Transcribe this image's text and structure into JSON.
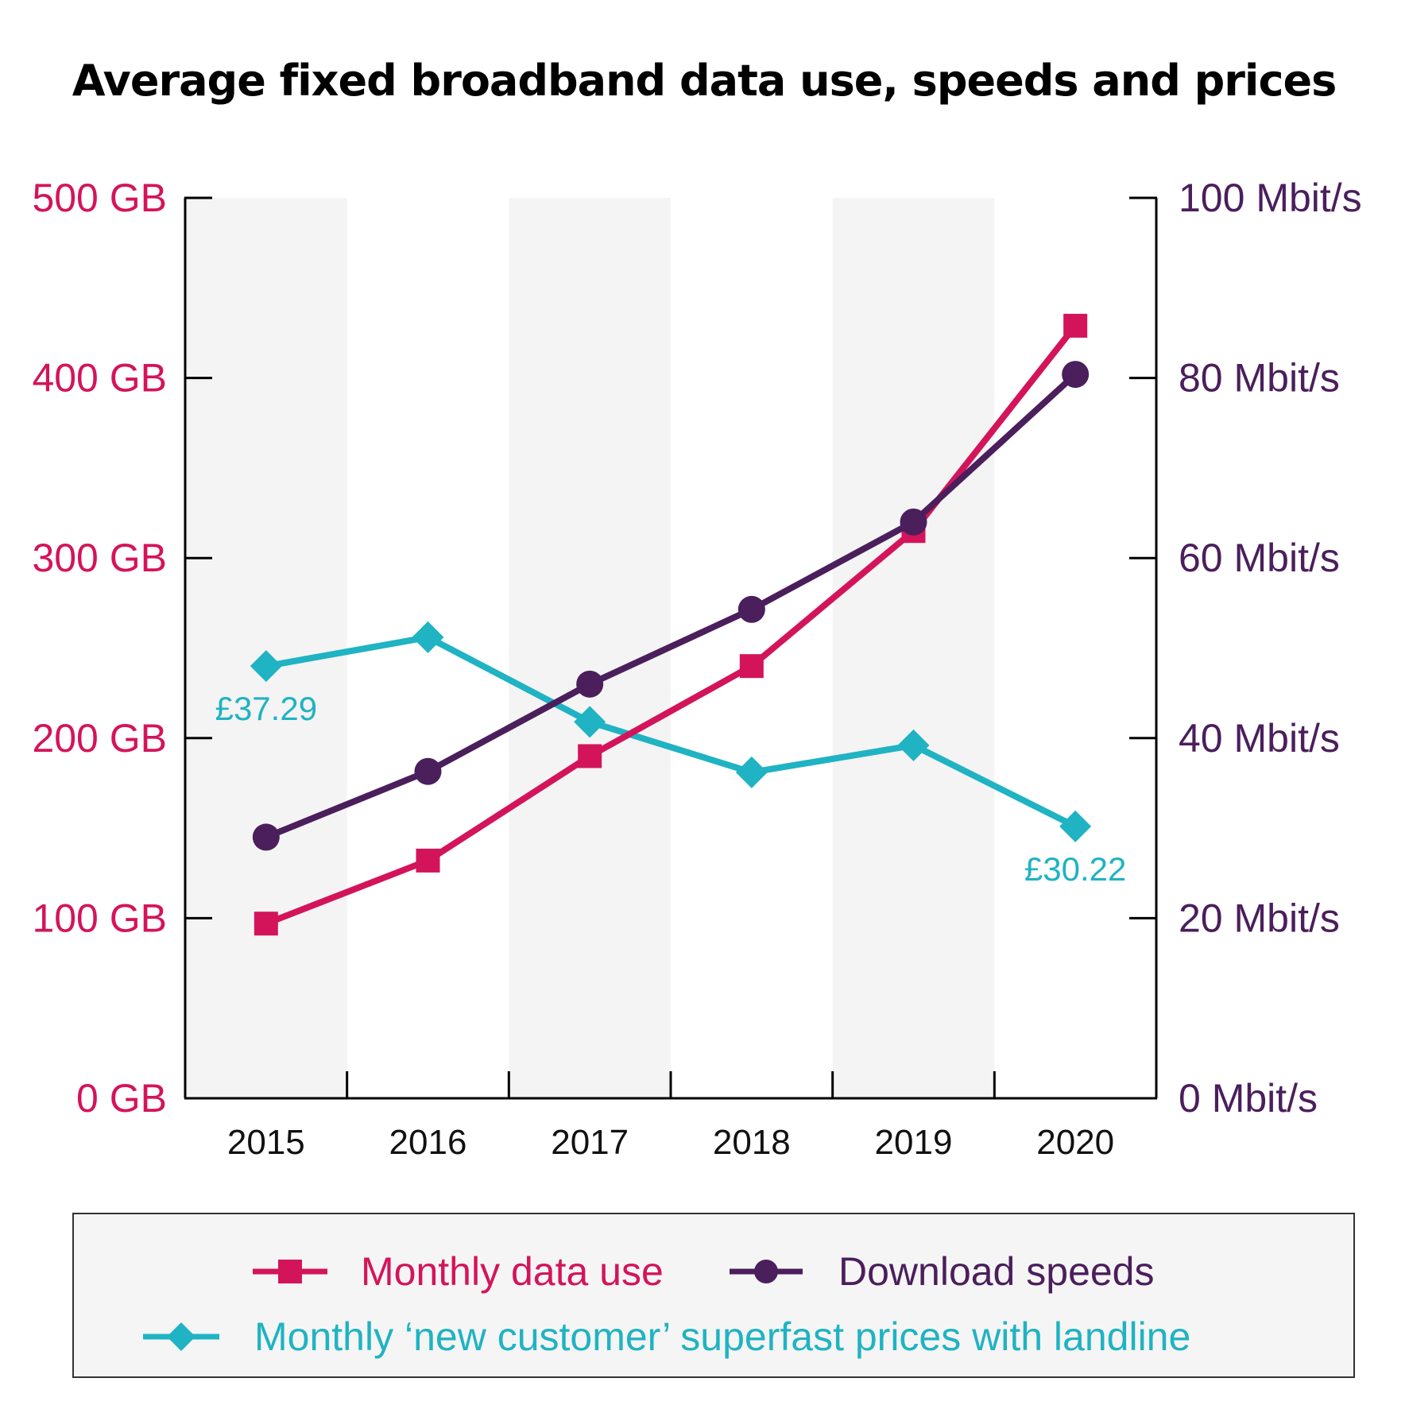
{
  "chart_data": {
    "type": "line",
    "title": "Average fixed broadband data use, speeds and prices",
    "categories": [
      "2015",
      "2016",
      "2017",
      "2018",
      "2019",
      "2020"
    ],
    "left_axis": {
      "ylim": [
        0,
        500
      ],
      "ticks": [
        0,
        100,
        200,
        300,
        400,
        500
      ],
      "tick_labels": [
        "0 GB",
        "100 GB",
        "200 GB",
        "300 GB",
        "400 GB",
        "500 GB"
      ]
    },
    "right_axis": {
      "ylim": [
        0,
        100
      ],
      "ticks": [
        0,
        20,
        40,
        60,
        80,
        100
      ],
      "tick_labels": [
        "0 Mbit/s",
        "20 Mbit/s",
        "40 Mbit/s",
        "60 Mbit/s",
        "80 Mbit/s",
        "100 Mbit/s"
      ]
    },
    "series": [
      {
        "name": "Monthly data use",
        "axis": "left",
        "marker": "square",
        "color": "#d4145a",
        "values": [
          97,
          132,
          190,
          240,
          315,
          429
        ]
      },
      {
        "name": "Download speeds",
        "axis": "right",
        "marker": "circle",
        "color": "#4b1e5c",
        "values": [
          29,
          36.3,
          46,
          54.3,
          64,
          80.4
        ]
      },
      {
        "name": "Monthly ‘new customer’ superfast prices with landline",
        "axis": "left",
        "marker": "diamond",
        "color": "#1fb3c3",
        "values": [
          240,
          256,
          209,
          181,
          196,
          151
        ],
        "point_labels": [
          "£37.29",
          "",
          "",
          "",
          "",
          "£30.22"
        ]
      }
    ],
    "legend_position": "bottom"
  }
}
